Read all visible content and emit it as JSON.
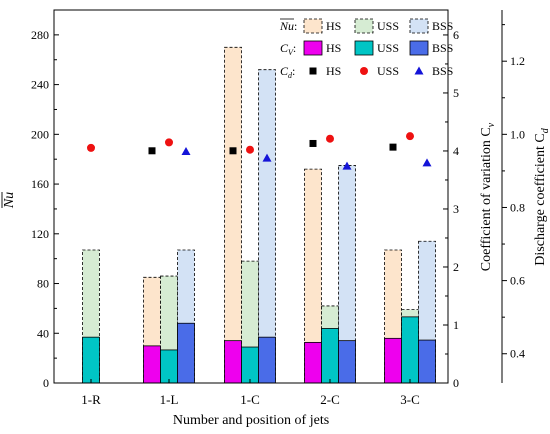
{
  "chart_data": {
    "type": "bar",
    "categories": [
      "1-R",
      "1-L",
      "1-C",
      "2-C",
      "3-C"
    ],
    "xlabel": "Number and position of jets",
    "ylabel_left": "Nu",
    "ylabel_right1": "Coefficient of variation C",
    "ylabel_right1_sub": "v",
    "ylabel_right2": "Discharge coefficient C",
    "ylabel_right2_sub": "d",
    "y_left": {
      "min": 0,
      "max": 300,
      "ticks": [
        0,
        40,
        80,
        120,
        160,
        200,
        240,
        280
      ]
    },
    "y_right1": {
      "min": 0,
      "max": 6.43,
      "ticks": [
        0,
        1,
        2,
        3,
        4,
        5,
        6
      ]
    },
    "y_right2": {
      "min": 0.32,
      "max": 1.34,
      "ticks": [
        0.4,
        0.6,
        0.8,
        1.0,
        1.2
      ]
    },
    "nu_series": [
      {
        "name": "HS",
        "color": "#fde5cc",
        "values": [
          null,
          85,
          270,
          172,
          107
        ]
      },
      {
        "name": "USS",
        "color": "#d6ecd3",
        "values": [
          107,
          86,
          98,
          62,
          59
        ]
      },
      {
        "name": "BSS",
        "color": "#d3e2f5",
        "values": [
          null,
          107,
          252,
          175,
          114
        ]
      }
    ],
    "cv_series": [
      {
        "name": "HS",
        "color": "#ee00ee",
        "values": [
          null,
          0.64,
          0.73,
          0.7,
          0.77
        ]
      },
      {
        "name": "USS",
        "color": "#00c5c5",
        "values": [
          0.79,
          0.57,
          0.62,
          0.94,
          1.14
        ]
      },
      {
        "name": "BSS",
        "color": "#4a6ce8",
        "values": [
          null,
          1.03,
          0.79,
          0.73,
          0.74
        ]
      }
    ],
    "cd_series": [
      {
        "name": "HS",
        "color": "#000000",
        "marker": "square",
        "values": [
          null,
          0.955,
          0.955,
          0.975,
          0.965
        ]
      },
      {
        "name": "USS",
        "color": "#ee1111",
        "marker": "circle",
        "values": [
          0.963,
          0.978,
          0.958,
          0.988,
          0.995
        ]
      },
      {
        "name": "BSS",
        "color": "#1414d8",
        "marker": "triangle",
        "values": [
          null,
          0.953,
          0.935,
          0.913,
          0.922
        ]
      }
    ],
    "legend": {
      "placement": "top-right",
      "rows": [
        {
          "label": "Nu",
          "label_sub": "",
          "overline": true,
          "entries": [
            "HS",
            "USS",
            "BSS"
          ]
        },
        {
          "label": "C",
          "label_sub": "V",
          "overline": false,
          "entries": [
            "HS",
            "USS",
            "BSS"
          ]
        },
        {
          "label": "C",
          "label_sub": "d",
          "overline": false,
          "entries": [
            "HS",
            "USS",
            "BSS"
          ]
        }
      ]
    }
  }
}
